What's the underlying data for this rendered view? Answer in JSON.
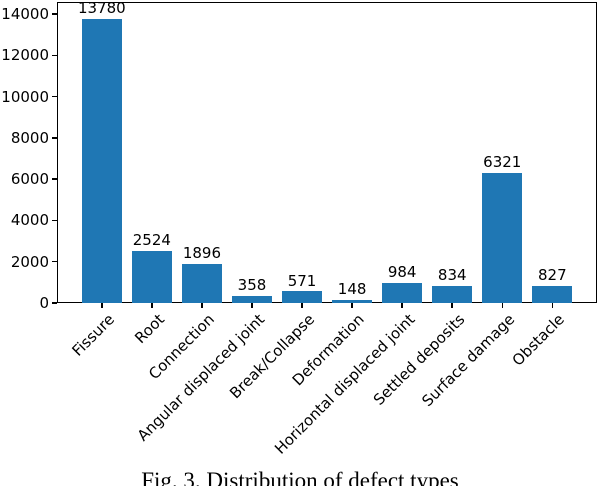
{
  "figure": {
    "caption": "Fig. 3. Distribution of defect types"
  },
  "chart_data": {
    "type": "bar",
    "title": "",
    "xlabel": "",
    "ylabel": "",
    "categories": [
      "Fissure",
      "Root",
      "Connection",
      "Angular displaced joint",
      "Break/Collapse",
      "Deformation",
      "Horizontal displaced joint",
      "Settled deposits",
      "Surface damage",
      "Obstacle"
    ],
    "values": [
      13780,
      2524,
      1896,
      358,
      571,
      148,
      984,
      834,
      6321,
      827
    ],
    "yticks": [
      0,
      2000,
      4000,
      6000,
      8000,
      10000,
      12000,
      14000
    ],
    "ylim": [
      0,
      14582
    ],
    "bar_color": "#1f77b4",
    "axis_color": "#000000",
    "grid": false,
    "legend": null,
    "value_labels_shown": true,
    "xtick_rotation_deg": 45
  }
}
